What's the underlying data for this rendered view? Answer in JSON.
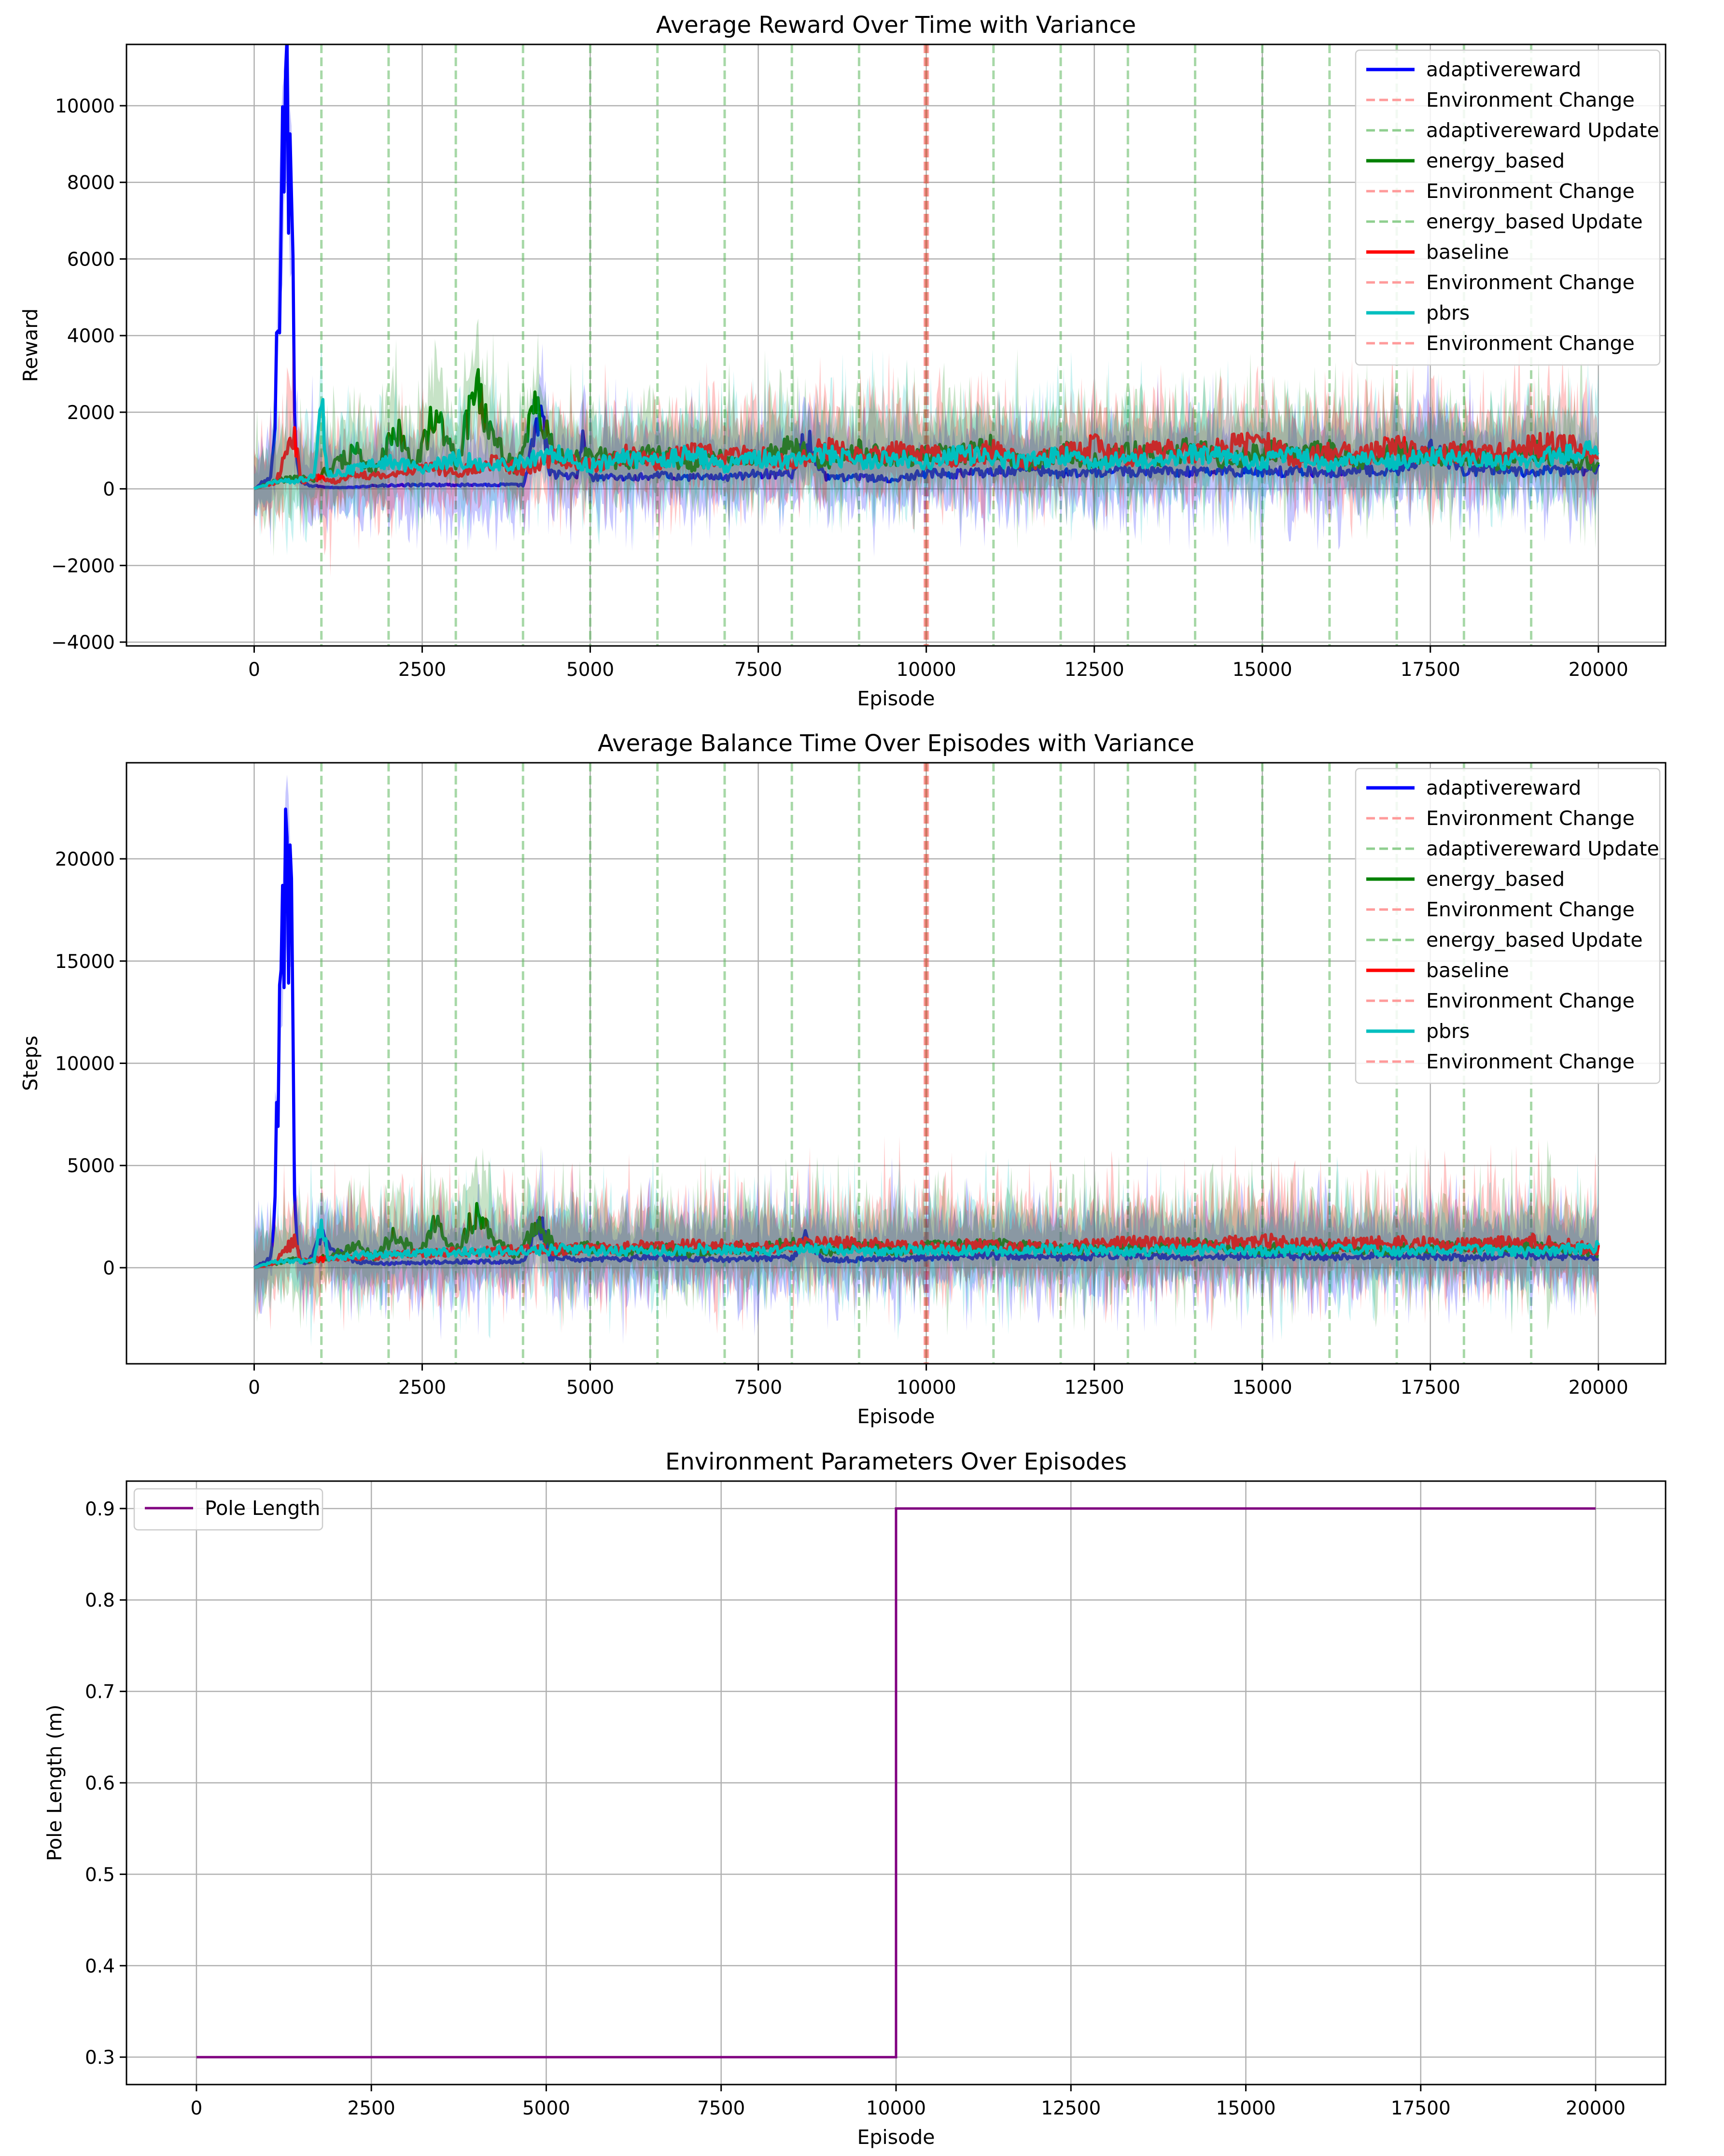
{
  "chart_data": [
    {
      "type": "line",
      "title": "Average Reward Over Time with Variance",
      "xlabel": "Episode",
      "ylabel": "Reward",
      "xlim": [
        -1900,
        21000
      ],
      "ylim": [
        -4100,
        11600
      ],
      "xticks": [
        0,
        2500,
        5000,
        7500,
        10000,
        12500,
        15000,
        17500,
        20000
      ],
      "yticks": [
        -4000,
        -2000,
        0,
        2000,
        4000,
        6000,
        8000,
        10000
      ],
      "yticklabels": [
        "−4000",
        "−2000",
        "0",
        "2000",
        "4000",
        "6000",
        "8000",
        "10000"
      ],
      "grid": true,
      "legend_position": "top-right",
      "environment_change_episode": 10000,
      "update_episodes": [
        1000,
        2000,
        3000,
        4000,
        5000,
        6000,
        7000,
        8000,
        9000,
        10000,
        11000,
        12000,
        13000,
        14000,
        15000,
        16000,
        17000,
        18000,
        19000
      ],
      "legend": [
        {
          "label": "adaptivereward",
          "kind": "line",
          "color": "#0000ff"
        },
        {
          "label": "Environment Change",
          "kind": "dash",
          "color": "#ff9a9a"
        },
        {
          "label": "adaptivereward Update",
          "kind": "dash",
          "color": "#8fcf8f"
        },
        {
          "label": "energy_based",
          "kind": "line",
          "color": "#008000"
        },
        {
          "label": "Environment Change",
          "kind": "dash",
          "color": "#ff9a9a"
        },
        {
          "label": "energy_based Update",
          "kind": "dash",
          "color": "#8fcf8f"
        },
        {
          "label": "baseline",
          "kind": "line",
          "color": "#ff0000"
        },
        {
          "label": "Environment Change",
          "kind": "dash",
          "color": "#ff9a9a"
        },
        {
          "label": "pbrs",
          "kind": "line",
          "color": "#00bfbf"
        },
        {
          "label": "Environment Change",
          "kind": "dash",
          "color": "#ff9a9a"
        }
      ],
      "series": [
        {
          "name": "adaptivereward",
          "color": "#0000ff",
          "x": [
            0,
            150,
            250,
            300,
            350,
            400,
            450,
            500,
            550,
            600,
            650,
            700,
            800,
            1000,
            1200,
            1500,
            2000,
            3000,
            4000,
            4200,
            4300,
            4400,
            4800,
            4900,
            5000,
            5500,
            6000,
            6500,
            7000,
            7500,
            8000,
            8200,
            8500,
            9000,
            9500,
            9800,
            10000,
            10500,
            11000,
            11500,
            12000,
            13000,
            14000,
            15000,
            16000,
            17000,
            17500,
            18000,
            19000,
            20000
          ],
          "y": [
            0,
            200,
            300,
            1500,
            4000,
            7000,
            9200,
            9200,
            8500,
            2000,
            500,
            200,
            100,
            50,
            30,
            50,
            100,
            100,
            100,
            1500,
            1800,
            400,
            300,
            1300,
            300,
            300,
            350,
            300,
            300,
            400,
            400,
            1400,
            300,
            300,
            250,
            350,
            400,
            400,
            450,
            500,
            400,
            450,
            450,
            450,
            450,
            500,
            1000,
            500,
            450,
            500
          ]
        },
        {
          "name": "energy_based",
          "color": "#008000",
          "x": [
            0,
            300,
            600,
            900,
            1200,
            1500,
            1800,
            2100,
            2400,
            2700,
            3000,
            3300,
            3600,
            3900,
            4200,
            4500,
            5000,
            5500,
            6000,
            6500,
            7000,
            7500,
            8000,
            8500,
            9000,
            9500,
            10000,
            10500,
            11000,
            11500,
            12000,
            12500,
            13000,
            13500,
            14000,
            14500,
            15000,
            15500,
            16000,
            16500,
            17000,
            17500,
            18000,
            18500,
            19000,
            19500,
            20000
          ],
          "y": [
            0,
            200,
            300,
            250,
            600,
            1000,
            400,
            1600,
            600,
            2000,
            700,
            2600,
            1200,
            500,
            2100,
            800,
            900,
            700,
            1000,
            600,
            900,
            800,
            1100,
            700,
            1000,
            800,
            900,
            900,
            1100,
            600,
            1000,
            700,
            1000,
            800,
            1100,
            700,
            1000,
            900,
            1000,
            700,
            1000,
            800,
            900,
            700,
            1000,
            800,
            600
          ]
        },
        {
          "name": "baseline",
          "color": "#ff0000",
          "x": [
            0,
            300,
            600,
            700,
            900,
            1200,
            1500,
            2000,
            2500,
            3000,
            3500,
            4000,
            4500,
            5000,
            5500,
            6000,
            6500,
            7000,
            7500,
            8000,
            8500,
            9000,
            9500,
            10000,
            10500,
            11000,
            11500,
            12000,
            12500,
            13000,
            13500,
            14000,
            14500,
            15000,
            15500,
            16000,
            16500,
            17000,
            17500,
            18000,
            18500,
            19000,
            19500,
            20000
          ],
          "y": [
            0,
            150,
            1300,
            200,
            300,
            200,
            400,
            300,
            600,
            400,
            700,
            500,
            800,
            600,
            900,
            700,
            1000,
            800,
            900,
            700,
            1100,
            800,
            1000,
            900,
            800,
            1000,
            700,
            900,
            1100,
            800,
            1000,
            900,
            1100,
            1200,
            800,
            1000,
            900,
            1100,
            800,
            1000,
            900,
            1100,
            1200,
            800
          ]
        },
        {
          "name": "pbrs",
          "color": "#00bfbf",
          "x": [
            0,
            300,
            600,
            900,
            1000,
            1100,
            1500,
            2000,
            2500,
            3000,
            3500,
            4000,
            4500,
            5000,
            5500,
            6000,
            6500,
            7000,
            7500,
            8000,
            8500,
            9000,
            9500,
            10000,
            10500,
            11000,
            11500,
            12000,
            12500,
            13000,
            13500,
            14000,
            14500,
            15000,
            15500,
            16000,
            16500,
            17000,
            17500,
            18000,
            18500,
            19000,
            19500,
            20000
          ],
          "y": [
            0,
            200,
            200,
            300,
            2300,
            400,
            500,
            700,
            500,
            800,
            600,
            700,
            900,
            600,
            800,
            700,
            900,
            600,
            800,
            700,
            900,
            700,
            800,
            700,
            900,
            800,
            700,
            900,
            600,
            800,
            700,
            900,
            800,
            700,
            900,
            600,
            800,
            700,
            900,
            800,
            700,
            800,
            900,
            1000
          ]
        }
      ]
    },
    {
      "type": "line",
      "title": "Average Balance Time Over Episodes with Variance",
      "xlabel": "Episode",
      "ylabel": "Steps",
      "xlim": [
        -1900,
        21000
      ],
      "ylim": [
        -4700,
        24700
      ],
      "xticks": [
        0,
        2500,
        5000,
        7500,
        10000,
        12500,
        15000,
        17500,
        20000
      ],
      "yticks": [
        0,
        5000,
        10000,
        15000,
        20000
      ],
      "yticklabels": [
        "0",
        "5000",
        "10000",
        "15000",
        "20000"
      ],
      "grid": true,
      "legend_position": "top-right",
      "environment_change_episode": 10000,
      "update_episodes": [
        1000,
        2000,
        3000,
        4000,
        5000,
        6000,
        7000,
        8000,
        9000,
        10000,
        11000,
        12000,
        13000,
        14000,
        15000,
        16000,
        17000,
        18000,
        19000
      ],
      "legend": [
        {
          "label": "adaptivereward",
          "kind": "line",
          "color": "#0000ff"
        },
        {
          "label": "Environment Change",
          "kind": "dash",
          "color": "#ff9a9a"
        },
        {
          "label": "adaptivereward Update",
          "kind": "dash",
          "color": "#8fcf8f"
        },
        {
          "label": "energy_based",
          "kind": "line",
          "color": "#008000"
        },
        {
          "label": "Environment Change",
          "kind": "dash",
          "color": "#ff9a9a"
        },
        {
          "label": "energy_based Update",
          "kind": "dash",
          "color": "#8fcf8f"
        },
        {
          "label": "baseline",
          "kind": "line",
          "color": "#ff0000"
        },
        {
          "label": "Environment Change",
          "kind": "dash",
          "color": "#ff9a9a"
        },
        {
          "label": "pbrs",
          "kind": "line",
          "color": "#00bfbf"
        },
        {
          "label": "Environment Change",
          "kind": "dash",
          "color": "#ff9a9a"
        }
      ],
      "series": [
        {
          "name": "adaptivereward",
          "color": "#0000ff",
          "x": [
            0,
            150,
            250,
            300,
            350,
            400,
            450,
            500,
            550,
            600,
            650,
            700,
            800,
            1000,
            1500,
            2000,
            3000,
            4000,
            4200,
            4300,
            4400,
            5000,
            6000,
            7000,
            8000,
            8200,
            8500,
            9000,
            10000,
            11000,
            12000,
            13000,
            14000,
            15000,
            16000,
            17000,
            18000,
            19000,
            20000
          ],
          "y": [
            0,
            300,
            500,
            3000,
            8000,
            13000,
            20000,
            20000,
            18000,
            4000,
            800,
            300,
            200,
            1500,
            300,
            200,
            300,
            300,
            1800,
            2000,
            500,
            400,
            500,
            400,
            500,
            1400,
            400,
            400,
            500,
            600,
            500,
            600,
            500,
            600,
            500,
            600,
            500,
            600,
            500
          ]
        },
        {
          "name": "energy_based",
          "color": "#008000",
          "x": [
            0,
            300,
            600,
            900,
            1200,
            1500,
            1800,
            2100,
            2400,
            2700,
            3000,
            3300,
            3600,
            3900,
            4200,
            4500,
            5000,
            5500,
            6000,
            6500,
            7000,
            7500,
            8000,
            8500,
            9000,
            9500,
            10000,
            11000,
            12000,
            13000,
            14000,
            15000,
            16000,
            17000,
            18000,
            19000,
            20000
          ],
          "y": [
            0,
            200,
            400,
            300,
            700,
            1100,
            500,
            1700,
            700,
            2100,
            800,
            2700,
            1300,
            600,
            2200,
            900,
            1000,
            800,
            1100,
            700,
            1000,
            900,
            1200,
            800,
            1100,
            900,
            1000,
            1100,
            900,
            1000,
            1100,
            900,
            1000,
            900,
            1000,
            1100,
            700
          ]
        },
        {
          "name": "baseline",
          "color": "#ff0000",
          "x": [
            0,
            300,
            600,
            700,
            900,
            1500,
            2500,
            3500,
            4500,
            5500,
            6500,
            7500,
            8500,
            9500,
            10000,
            11000,
            12000,
            13000,
            14000,
            15000,
            16000,
            17000,
            18000,
            19000,
            20000
          ],
          "y": [
            0,
            200,
            1400,
            300,
            400,
            500,
            700,
            800,
            900,
            1000,
            1100,
            1000,
            1200,
            1100,
            1000,
            1100,
            1000,
            1200,
            1100,
            1300,
            1100,
            1200,
            1100,
            1300,
            900
          ]
        },
        {
          "name": "pbrs",
          "color": "#00bfbf",
          "x": [
            0,
            300,
            600,
            900,
            1000,
            1100,
            1500,
            2500,
            3500,
            4500,
            5500,
            6500,
            7500,
            8500,
            9500,
            10000,
            11000,
            12000,
            13000,
            14000,
            15000,
            16000,
            17000,
            18000,
            19000,
            20000
          ],
          "y": [
            0,
            300,
            300,
            400,
            2500,
            500,
            600,
            700,
            800,
            900,
            800,
            900,
            800,
            900,
            800,
            900,
            800,
            900,
            800,
            900,
            800,
            900,
            800,
            900,
            800,
            1000
          ]
        }
      ]
    },
    {
      "type": "line",
      "title": "Environment Parameters Over Episodes",
      "xlabel": "Episode",
      "ylabel": "Pole Length (m)",
      "xlim": [
        -1000,
        21000
      ],
      "ylim": [
        0.27,
        0.93
      ],
      "xticks": [
        0,
        2500,
        5000,
        7500,
        10000,
        12500,
        15000,
        17500,
        20000
      ],
      "yticks": [
        0.3,
        0.4,
        0.5,
        0.6,
        0.7,
        0.8,
        0.9
      ],
      "yticklabels": [
        "0.3",
        "0.4",
        "0.5",
        "0.6",
        "0.7",
        "0.8",
        "0.9"
      ],
      "grid": true,
      "legend_position": "top-left",
      "legend": [
        {
          "label": "Pole Length",
          "kind": "thin",
          "color": "#800080"
        }
      ],
      "series": [
        {
          "name": "Pole Length",
          "color": "#800080",
          "x": [
            0,
            10000,
            10000,
            20000
          ],
          "y": [
            0.3,
            0.3,
            0.9,
            0.9
          ]
        }
      ]
    }
  ]
}
